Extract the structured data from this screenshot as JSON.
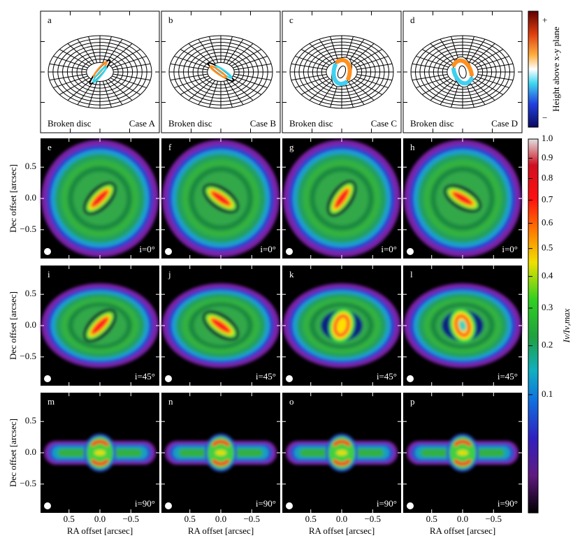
{
  "panels_top": [
    {
      "letter": "a",
      "model": "Broken disc",
      "case": "Case A"
    },
    {
      "letter": "b",
      "model": "Broken disc",
      "case": "Case B"
    },
    {
      "letter": "c",
      "model": "Broken disc",
      "case": "Case C"
    },
    {
      "letter": "d",
      "model": "Broken disc",
      "case": "Case D"
    }
  ],
  "colorbar_top": {
    "label": "Height above x-y plane",
    "plus": "+",
    "minus": "−"
  },
  "panels_images": [
    {
      "letter": "e",
      "inclination": "i=0°"
    },
    {
      "letter": "f",
      "inclination": "i=0°"
    },
    {
      "letter": "g",
      "inclination": "i=0°"
    },
    {
      "letter": "h",
      "inclination": "i=0°"
    },
    {
      "letter": "i",
      "inclination": "i=45°"
    },
    {
      "letter": "j",
      "inclination": "i=45°"
    },
    {
      "letter": "k",
      "inclination": "i=45°"
    },
    {
      "letter": "l",
      "inclination": "i=45°"
    },
    {
      "letter": "m",
      "inclination": "i=90°"
    },
    {
      "letter": "n",
      "inclination": "i=90°"
    },
    {
      "letter": "o",
      "inclination": "i=90°"
    },
    {
      "letter": "p",
      "inclination": "i=90°"
    }
  ],
  "axes": {
    "xlabel": "RA offset [arcsec]",
    "ylabel": "Dec offset [arcsec]",
    "xlim": [
      0.96,
      -0.96
    ],
    "ylim": [
      -0.96,
      0.96
    ],
    "xticks": [
      0.5,
      {
        "value": 0,
        "label": "0.0"
      },
      {
        "value": -0.5,
        "label": "−0.5"
      }
    ],
    "yticks": [
      0.5,
      {
        "value": 0,
        "label": "0.0"
      },
      {
        "value": -0.5,
        "label": "−0.5"
      }
    ]
  },
  "colorbar": {
    "label": "Iν/Iν,max",
    "lim": [
      0,
      1
    ],
    "scale": "sqrt",
    "ticks": [
      {
        "value": 1,
        "label": "1.0"
      },
      0.9,
      0.8,
      0.7,
      0.6,
      0.5,
      0.4,
      0.3,
      0.2,
      0.1
    ]
  }
}
